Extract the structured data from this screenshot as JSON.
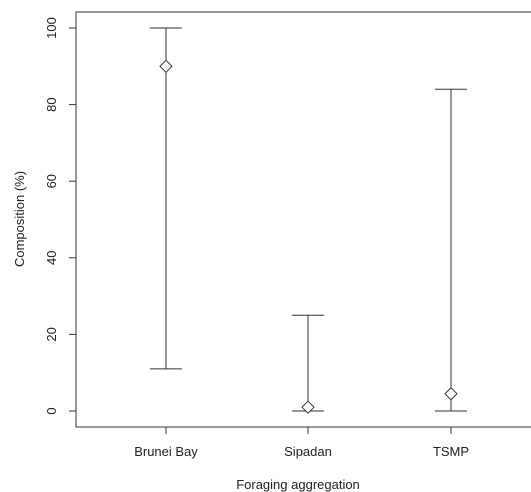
{
  "chart_data": {
    "type": "scatter",
    "title": "",
    "xlabel": "Foraging aggregation",
    "ylabel": "Composition (%)",
    "categories": [
      "Brunei Bay",
      "Sipadan",
      "TSMP"
    ],
    "series": [
      {
        "marker": "diamond",
        "estimate": [
          90,
          1,
          4.5
        ],
        "lower": [
          11,
          0,
          0
        ],
        "upper": [
          100,
          25,
          84
        ]
      }
    ],
    "ylim": [
      -4,
      104
    ],
    "yticks": [
      "0",
      "20",
      "40",
      "60",
      "80",
      "100"
    ],
    "grid": false,
    "legend": "none",
    "colors": {
      "line": "#333333",
      "marker_fill": "#ffffff",
      "axis": "#333333"
    }
  }
}
